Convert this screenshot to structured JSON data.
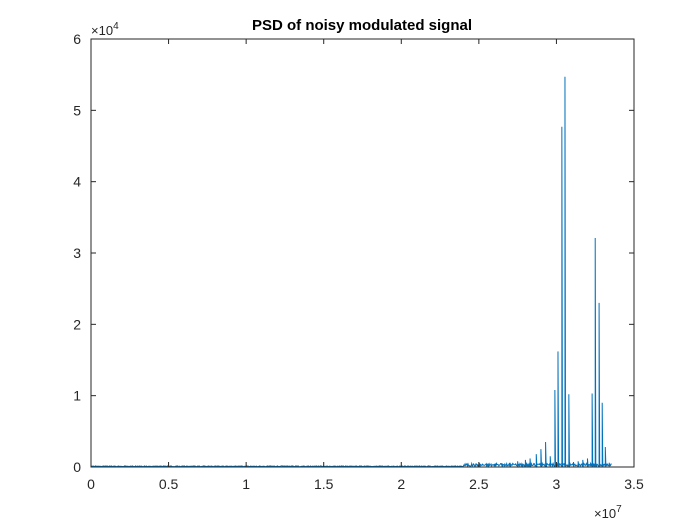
{
  "chart_data": {
    "type": "line",
    "title": "PSD of noisy modulated signal",
    "xlabel": "",
    "ylabel": "",
    "xlim": [
      0,
      3.5
    ],
    "ylim": [
      0,
      6
    ],
    "x_multiplier": {
      "base": "×10",
      "exponent": "7"
    },
    "y_multiplier": {
      "base": "×10",
      "exponent": "4"
    },
    "xticks": [
      0,
      0.5,
      1,
      1.5,
      2,
      2.5,
      3,
      3.5
    ],
    "xtick_labels": [
      "0",
      "0.5",
      "1",
      "1.5",
      "2",
      "2.5",
      "3",
      "3.5"
    ],
    "yticks": [
      0,
      1,
      2,
      3,
      4,
      5,
      6
    ],
    "ytick_labels": [
      "0",
      "1",
      "2",
      "3",
      "4",
      "5",
      "6"
    ],
    "grid": false,
    "legend": "none",
    "series_color": "#0072BD",
    "series": [
      {
        "peaks_x": [
          2.5,
          2.55,
          2.6,
          2.65,
          2.7,
          2.75,
          2.8,
          2.83,
          2.87,
          2.9,
          2.93,
          2.96,
          2.99,
          3.01,
          3.035,
          3.055,
          3.08,
          3.11,
          3.14,
          3.17,
          3.2,
          3.23,
          3.25,
          3.275,
          3.295,
          3.315,
          3.34
        ],
        "peaks_y": [
          0.03,
          0.03,
          0.04,
          0.05,
          0.06,
          0.08,
          0.1,
          0.12,
          0.18,
          0.25,
          0.35,
          0.15,
          1.08,
          1.62,
          4.77,
          5.47,
          1.02,
          0.07,
          0.08,
          0.1,
          0.12,
          1.03,
          3.21,
          2.3,
          0.9,
          0.28,
          0.06
        ]
      }
    ]
  }
}
